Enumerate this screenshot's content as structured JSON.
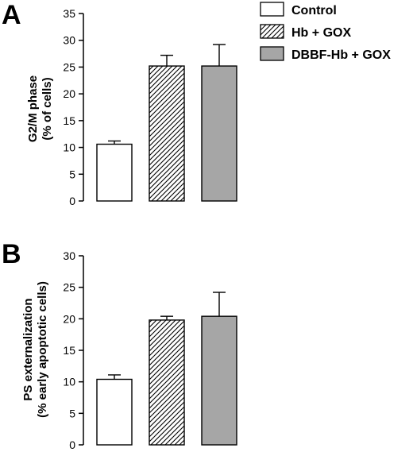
{
  "chart_data": [
    {
      "type": "bar",
      "panel": "A",
      "categories": [
        "Control",
        "Hb + GOX",
        "DBBF-Hb + GOX"
      ],
      "values": [
        10.6,
        25.2,
        25.2
      ],
      "error": [
        0.6,
        2.0,
        4.0
      ],
      "ylabel_line1": "G2/M phase",
      "ylabel_line2": "(% of cells)",
      "ylim": [
        0,
        35
      ],
      "yticks": [
        0,
        5,
        10,
        15,
        20,
        25,
        30,
        35
      ],
      "legend": [
        "Control",
        "Hb + GOX",
        "DBBF-Hb + GOX"
      ],
      "legend_position": "top-right"
    },
    {
      "type": "bar",
      "panel": "B",
      "categories": [
        "Control",
        "Hb + GOX",
        "DBBF-Hb + GOX"
      ],
      "values": [
        10.4,
        19.8,
        20.4
      ],
      "error": [
        0.7,
        0.6,
        3.8
      ],
      "ylabel_line1": "PS externalization",
      "ylabel_line2": "(% early apoptotic cells)",
      "ylim": [
        0,
        30
      ],
      "yticks": [
        0,
        5,
        10,
        15,
        20,
        25,
        30
      ]
    }
  ],
  "styles": {
    "fills": [
      "white",
      "hatch",
      "#a6a6a6"
    ],
    "stroke": "#000000"
  }
}
